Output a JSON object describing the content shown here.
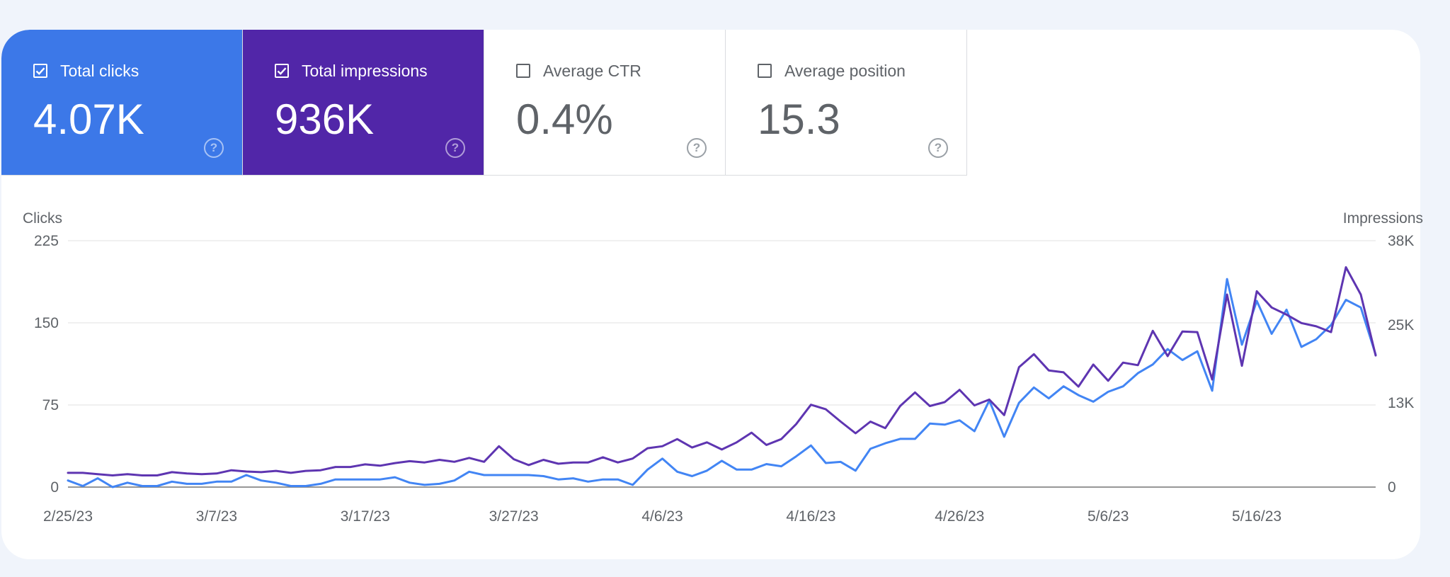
{
  "cards": [
    {
      "label": "Total clicks",
      "value": "4.07K",
      "checked": true,
      "color": "#3c78e8"
    },
    {
      "label": "Total impressions",
      "value": "936K",
      "checked": true,
      "color": "#5126a8"
    },
    {
      "label": "Average CTR",
      "value": "0.4%",
      "checked": false,
      "color": "#ffffff"
    },
    {
      "label": "Average position",
      "value": "15.3",
      "checked": false,
      "color": "#ffffff"
    }
  ],
  "chart_data": {
    "type": "line",
    "ylabel": "Clicks",
    "y2label": "Impressions",
    "ylim": [
      0,
      225
    ],
    "y2lim": [
      0,
      38000
    ],
    "yticks": [
      {
        "value": 0,
        "label": "0"
      },
      {
        "value": 75,
        "label": "75"
      },
      {
        "value": 150,
        "label": "150"
      },
      {
        "value": 225,
        "label": "225"
      }
    ],
    "y2ticks": [
      {
        "value": 0,
        "label": "0"
      },
      {
        "value": 13000,
        "label": "13K"
      },
      {
        "value": 25000,
        "label": "25K"
      },
      {
        "value": 38000,
        "label": "38K"
      }
    ],
    "x_start": "2/25/23",
    "x_end": "5/28/23",
    "xticks": [
      {
        "index": 0,
        "label": "2/25/23"
      },
      {
        "index": 10,
        "label": "3/7/23"
      },
      {
        "index": 20,
        "label": "3/17/23"
      },
      {
        "index": 30,
        "label": "3/27/23"
      },
      {
        "index": 40,
        "label": "4/6/23"
      },
      {
        "index": 50,
        "label": "4/16/23"
      },
      {
        "index": 60,
        "label": "4/26/23"
      },
      {
        "index": 70,
        "label": "5/6/23"
      },
      {
        "index": 80,
        "label": "5/16/23"
      }
    ],
    "grid": true,
    "series": [
      {
        "name": "Total clicks",
        "axis": "left",
        "color": "#4285f4",
        "values": [
          6,
          1,
          8,
          0,
          4,
          1,
          1,
          5,
          3,
          3,
          5,
          5,
          11,
          6,
          4,
          1,
          1,
          3,
          7,
          7,
          7,
          7,
          9,
          4,
          2,
          3,
          6,
          14,
          11,
          11,
          11,
          11,
          10,
          7,
          8,
          5,
          7,
          7,
          2,
          16,
          26,
          14,
          10,
          15,
          24,
          16,
          16,
          21,
          19,
          28,
          38,
          22,
          23,
          15,
          35,
          40,
          44,
          44,
          58,
          57,
          61,
          51,
          79,
          46,
          77,
          91,
          81,
          92,
          84,
          78,
          87,
          92,
          104,
          112,
          126,
          116,
          124,
          88,
          190,
          130,
          170,
          140,
          162,
          128,
          135,
          148,
          171,
          164,
          121
        ]
      },
      {
        "name": "Total impressions",
        "axis": "right",
        "color": "#5e35b1",
        "values": [
          2200,
          2200,
          2000,
          1800,
          2000,
          1800,
          1800,
          2300,
          2100,
          2000,
          2100,
          2600,
          2400,
          2300,
          2500,
          2200,
          2500,
          2600,
          3100,
          3100,
          3500,
          3300,
          3700,
          4000,
          3800,
          4200,
          3900,
          4500,
          3900,
          6300,
          4300,
          3400,
          4200,
          3600,
          3800,
          3800,
          4600,
          3800,
          4400,
          6000,
          6300,
          7400,
          6100,
          6900,
          5800,
          6900,
          8400,
          6500,
          7400,
          9700,
          12700,
          12000,
          10100,
          8300,
          10100,
          9100,
          12500,
          14600,
          12500,
          13100,
          15000,
          12600,
          13500,
          11100,
          18500,
          20500,
          18000,
          17700,
          15500,
          18900,
          16400,
          19200,
          18800,
          24100,
          20200,
          24000,
          23900,
          16600,
          29700,
          18700,
          30200,
          27700,
          26600,
          25300,
          24800,
          23900,
          33900,
          29700,
          20300
        ]
      }
    ]
  }
}
